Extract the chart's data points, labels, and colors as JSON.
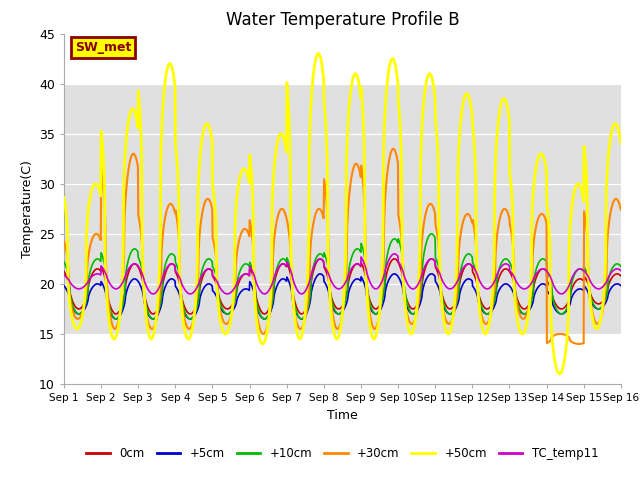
{
  "title": "Water Temperature Profile B",
  "xlabel": "Time",
  "ylabel": "Temperature(C)",
  "ylim": [
    10,
    45
  ],
  "xlim": [
    0,
    15
  ],
  "xtick_labels": [
    "Sep 1",
    "Sep 2",
    "Sep 3",
    "Sep 4",
    "Sep 5",
    "Sep 6",
    "Sep 7",
    "Sep 8",
    "Sep 9",
    "Sep 10",
    "Sep 11",
    "Sep 12",
    "Sep 13",
    "Sep 14",
    "Sep 15",
    "Sep 16"
  ],
  "xtick_positions": [
    0,
    1,
    2,
    3,
    4,
    5,
    6,
    7,
    8,
    9,
    10,
    11,
    12,
    13,
    14,
    15
  ],
  "ytick_positions": [
    10,
    15,
    20,
    25,
    30,
    35,
    40,
    45
  ],
  "shade_ymin": 15,
  "shade_ymax": 40,
  "legend_labels": [
    "0cm",
    "+5cm",
    "+10cm",
    "+30cm",
    "+50cm",
    "TC_temp11"
  ],
  "line_colors": [
    "#cc0000",
    "#0000cc",
    "#00bb00",
    "#ff8800",
    "#ffff00",
    "#cc00cc"
  ],
  "line_widths": [
    1.2,
    1.2,
    1.2,
    1.5,
    2.0,
    1.2
  ],
  "sw_met_label": "SW_met",
  "sw_met_bg": "#ffff00",
  "sw_met_border": "#880000",
  "plot_bg_color": "#e0e0e0",
  "grid_color": "#ffffff",
  "base_temp": 19.0,
  "peak_50cm": [
    30.0,
    37.5,
    42.0,
    36.0,
    31.5,
    35.0,
    43.0,
    41.0,
    42.5,
    41.0,
    39.0,
    38.5,
    33.0,
    30.0,
    36.0
  ],
  "min_50cm": [
    15.5,
    14.5,
    14.5,
    14.5,
    15.0,
    14.0,
    14.5,
    14.5,
    14.5,
    15.0,
    15.0,
    15.0,
    15.0,
    11.0,
    15.5
  ],
  "peak_30cm": [
    25.0,
    33.0,
    28.0,
    28.5,
    25.5,
    27.5,
    27.5,
    32.0,
    33.5,
    28.0,
    27.0,
    27.5,
    27.0,
    14.0,
    28.5
  ],
  "min_30cm": [
    16.5,
    15.5,
    15.5,
    15.5,
    16.0,
    15.0,
    15.5,
    15.5,
    15.5,
    16.0,
    16.0,
    16.0,
    16.5,
    15.0,
    16.0
  ],
  "peak_0cm": [
    21.5,
    22.0,
    22.0,
    21.5,
    21.0,
    22.0,
    22.5,
    22.0,
    22.5,
    22.5,
    22.0,
    21.5,
    21.5,
    20.5,
    21.0
  ],
  "min_0cm": [
    17.5,
    17.0,
    17.0,
    17.0,
    17.5,
    17.0,
    17.0,
    17.5,
    17.5,
    17.5,
    17.5,
    17.5,
    17.5,
    17.5,
    18.0
  ],
  "peak_5cm": [
    20.0,
    20.5,
    20.5,
    20.0,
    19.5,
    20.5,
    21.0,
    20.5,
    21.0,
    21.0,
    20.5,
    20.0,
    20.0,
    19.5,
    20.0
  ],
  "min_5cm": [
    17.0,
    16.5,
    16.5,
    16.5,
    17.0,
    16.5,
    16.5,
    17.0,
    17.0,
    17.0,
    17.0,
    17.0,
    17.0,
    17.0,
    17.5
  ],
  "peak_10cm": [
    22.5,
    23.5,
    23.0,
    22.5,
    22.0,
    22.5,
    23.0,
    23.5,
    24.5,
    25.0,
    23.0,
    22.5,
    22.5,
    21.5,
    22.0
  ],
  "min_10cm": [
    17.0,
    16.5,
    16.5,
    16.5,
    17.0,
    16.5,
    16.5,
    17.0,
    17.0,
    17.0,
    17.0,
    17.0,
    17.0,
    17.0,
    17.5
  ],
  "peak_tc": [
    21.0,
    22.0,
    22.0,
    21.5,
    21.0,
    22.0,
    22.5,
    22.0,
    23.0,
    22.5,
    22.0,
    22.0,
    21.5,
    21.5,
    21.5
  ],
  "min_tc": [
    19.5,
    19.5,
    19.0,
    19.0,
    19.0,
    19.0,
    19.0,
    19.5,
    19.5,
    19.5,
    19.5,
    19.5,
    19.5,
    19.0,
    19.5
  ],
  "pts_per_day": 96,
  "n_days": 15
}
